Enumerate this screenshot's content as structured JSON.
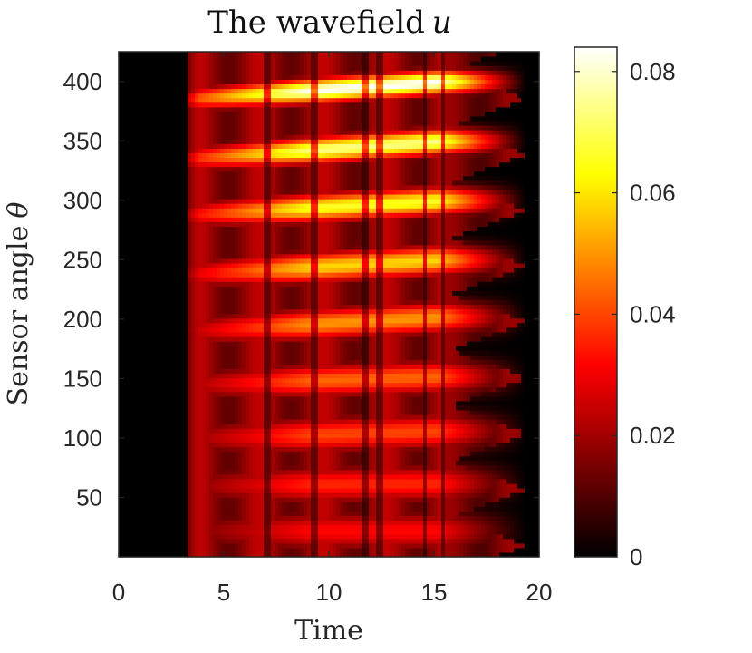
{
  "chart_data": {
    "type": "heatmap",
    "title": "The wavefield",
    "title_variable": "u",
    "xlabel": "Time",
    "ylabel": "Sensor angle",
    "ylabel_variable": "θ",
    "xlim": [
      0,
      20
    ],
    "ylim": [
      0,
      425
    ],
    "xticks": [
      0,
      5,
      10,
      15,
      20
    ],
    "yticks": [
      50,
      100,
      150,
      200,
      250,
      300,
      350,
      400
    ],
    "colormap": "hot",
    "colorbar": {
      "range": [
        0,
        0.084
      ],
      "ticks": [
        0,
        0.02,
        0.04,
        0.06,
        0.08
      ],
      "tick_labels": [
        "0",
        "0.02",
        "0.04",
        "0.06",
        "0.08"
      ]
    },
    "signal_onset_time": 3.2,
    "bands": [
      {
        "theta_start": 385,
        "theta_end": 400,
        "peak_value": 0.084
      },
      {
        "theta_start": 335,
        "theta_end": 350,
        "peak_value": 0.074
      },
      {
        "theta_start": 288,
        "theta_end": 300,
        "peak_value": 0.066
      },
      {
        "theta_start": 238,
        "theta_end": 250,
        "peak_value": 0.058
      },
      {
        "theta_start": 190,
        "theta_end": 202,
        "peak_value": 0.05
      },
      {
        "theta_start": 145,
        "theta_end": 152,
        "peak_value": 0.044
      },
      {
        "theta_start": 100,
        "theta_end": 106,
        "peak_value": 0.04
      },
      {
        "theta_start": 60,
        "theta_end": 62,
        "peak_value": 0.036
      },
      {
        "theta_start": 22,
        "theta_end": 22,
        "peak_value": 0.032
      }
    ]
  }
}
